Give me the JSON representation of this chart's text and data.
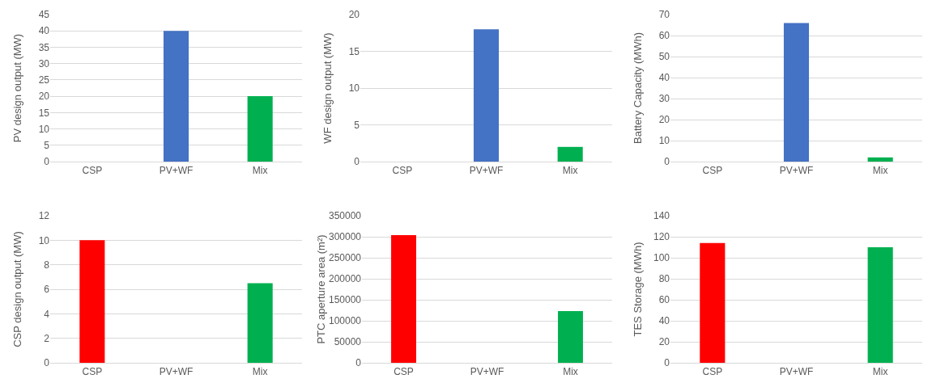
{
  "chart_data": [
    {
      "type": "bar",
      "ylabel": "PV design output (MW)",
      "categories": [
        "CSP",
        "PV+WF",
        "Mix"
      ],
      "values": [
        0,
        40,
        20
      ],
      "colors": [
        "#ff0000",
        "#4472c4",
        "#00b050"
      ],
      "ylim": [
        0,
        45
      ],
      "yticks": [
        0,
        5,
        10,
        15,
        20,
        25,
        30,
        35,
        40,
        45
      ],
      "grid": "y"
    },
    {
      "type": "bar",
      "ylabel": "WF design output (MW)",
      "categories": [
        "CSP",
        "PV+WF",
        "Mix"
      ],
      "values": [
        0,
        18,
        2
      ],
      "colors": [
        "#ff0000",
        "#4472c4",
        "#00b050"
      ],
      "ylim": [
        0,
        20
      ],
      "yticks": [
        0,
        5,
        10,
        15,
        20
      ],
      "grid": "y"
    },
    {
      "type": "bar",
      "ylabel": "Battery Capacity (MWh)",
      "categories": [
        "CSP",
        "PV+WF",
        "Mix"
      ],
      "values": [
        0,
        66,
        2
      ],
      "colors": [
        "#ff0000",
        "#4472c4",
        "#00b050"
      ],
      "ylim": [
        0,
        70
      ],
      "yticks": [
        0,
        10,
        20,
        30,
        40,
        50,
        60,
        70
      ],
      "grid": "y"
    },
    {
      "type": "bar",
      "ylabel": "CSP design output (MW)",
      "categories": [
        "CSP",
        "PV+WF",
        "Mix"
      ],
      "values": [
        10,
        0,
        6.5
      ],
      "colors": [
        "#ff0000",
        "#4472c4",
        "#00b050"
      ],
      "ylim": [
        0,
        12
      ],
      "yticks": [
        0,
        2,
        4,
        6,
        8,
        10,
        12
      ],
      "grid": "y"
    },
    {
      "type": "bar",
      "ylabel": "PTC aperture area (m²)",
      "categories": [
        "CSP",
        "PV+WF",
        "Mix"
      ],
      "values": [
        304000,
        0,
        123000
      ],
      "colors": [
        "#ff0000",
        "#4472c4",
        "#00b050"
      ],
      "ylim": [
        0,
        350000
      ],
      "yticks": [
        0,
        50000,
        100000,
        150000,
        200000,
        250000,
        300000,
        350000
      ],
      "grid": "y"
    },
    {
      "type": "bar",
      "ylabel": "TES Storage (MWh)",
      "categories": [
        "CSP",
        "PV+WF",
        "Mix"
      ],
      "values": [
        114,
        0,
        110
      ],
      "colors": [
        "#ff0000",
        "#4472c4",
        "#00b050"
      ],
      "ylim": [
        0,
        140
      ],
      "yticks": [
        0,
        20,
        40,
        60,
        80,
        100,
        120,
        140
      ],
      "grid": "y"
    }
  ]
}
